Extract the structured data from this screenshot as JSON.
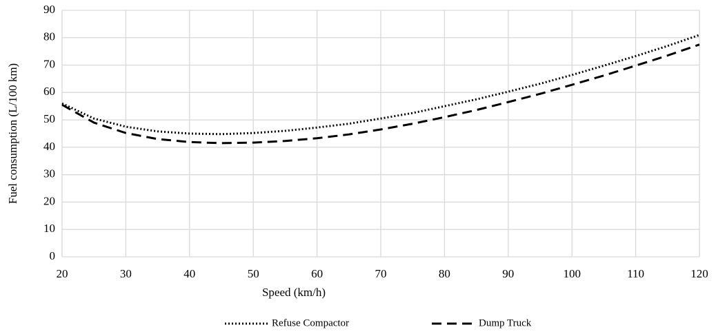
{
  "chart_data": {
    "type": "line",
    "x_label": "Speed (km/h)",
    "y_label": "Fuel consumption (L/100 km)",
    "x": [
      20,
      25,
      30,
      35,
      40,
      45,
      50,
      55,
      60,
      65,
      70,
      75,
      80,
      85,
      90,
      95,
      100,
      105,
      110,
      115,
      120
    ],
    "series": [
      {
        "name": "Refuse Compactor",
        "color": "#000000",
        "style": "dotted",
        "values": [
          56,
          50.5,
          47.5,
          45.8,
          45,
          44.8,
          45.2,
          46,
          47.2,
          48.6,
          50.5,
          52.5,
          55,
          57.5,
          60.3,
          63.2,
          66.4,
          69.8,
          73.3,
          77,
          81
        ]
      },
      {
        "name": "Dump Truck",
        "color": "#000000",
        "style": "dashed",
        "values": [
          55.5,
          49,
          45.2,
          43,
          41.9,
          41.5,
          41.7,
          42.3,
          43.3,
          44.7,
          46.5,
          48.6,
          51,
          53.6,
          56.5,
          59.5,
          62.8,
          66.2,
          69.8,
          73.5,
          77.5
        ]
      }
    ],
    "xlim": [
      20,
      120
    ],
    "xticks": [
      20,
      30,
      40,
      50,
      60,
      70,
      80,
      90,
      100,
      110,
      120
    ],
    "ylim": [
      0,
      90
    ],
    "yticks": [
      0,
      10,
      20,
      30,
      40,
      50,
      60,
      70,
      80,
      90
    ],
    "grid": true,
    "legend": "bottom"
  }
}
